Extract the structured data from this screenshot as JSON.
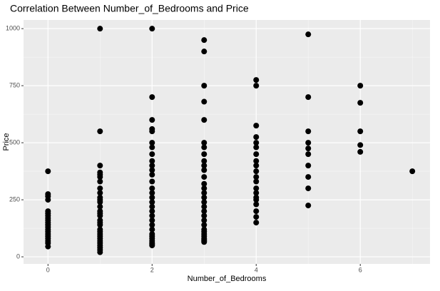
{
  "chart_data": {
    "type": "scatter",
    "title": "Correlation Between Number_of_Bedrooms and Price",
    "x_label": "Number_of_Bedrooms",
    "y_label": "Price",
    "color": "#000000",
    "grid": true,
    "xlim": [
      -0.47,
      7.34
    ],
    "ylim": [
      -31,
      1038
    ],
    "xticks": [
      0,
      2,
      4,
      6
    ],
    "yticks": [
      0,
      250,
      500,
      750,
      1000
    ],
    "xminor": [
      1,
      3,
      5,
      7
    ],
    "yminor": [
      125,
      375,
      625,
      875
    ],
    "x": [
      0,
      0,
      0,
      0,
      0,
      0,
      0,
      0,
      0,
      0,
      0,
      0,
      0,
      0,
      0,
      0,
      0,
      0,
      0,
      0,
      1,
      1,
      1,
      1,
      1,
      1,
      1,
      1,
      1,
      1,
      1,
      1,
      1,
      1,
      1,
      1,
      1,
      1,
      1,
      1,
      1,
      1,
      1,
      1,
      1,
      1,
      1,
      1,
      1,
      1,
      2,
      2,
      2,
      2,
      2,
      2,
      2,
      2,
      2,
      2,
      2,
      2,
      2,
      2,
      2,
      2,
      2,
      2,
      2,
      2,
      2,
      2,
      2,
      2,
      2,
      2,
      2,
      2,
      2,
      2,
      3,
      3,
      3,
      3,
      3,
      3,
      3,
      3,
      3,
      3,
      3,
      3,
      3,
      3,
      3,
      3,
      3,
      3,
      3,
      3,
      3,
      3,
      3,
      3,
      3,
      3,
      3,
      3,
      3,
      3,
      4,
      4,
      4,
      4,
      4,
      4,
      4,
      4,
      4,
      4,
      4,
      4,
      4,
      4,
      4,
      4,
      4,
      4,
      4,
      4,
      5,
      5,
      5,
      5,
      5,
      5,
      5,
      5,
      5,
      5,
      6,
      6,
      6,
      6,
      6,
      7
    ],
    "values": [
      375,
      275,
      265,
      250,
      200,
      190,
      180,
      170,
      160,
      150,
      140,
      130,
      120,
      110,
      100,
      90,
      80,
      70,
      60,
      45,
      1000,
      550,
      400,
      370,
      360,
      350,
      330,
      300,
      280,
      260,
      250,
      240,
      220,
      200,
      190,
      180,
      160,
      150,
      140,
      120,
      110,
      100,
      90,
      80,
      70,
      60,
      50,
      40,
      30,
      20,
      1000,
      700,
      600,
      560,
      550,
      500,
      480,
      450,
      420,
      400,
      380,
      360,
      330,
      300,
      280,
      260,
      240,
      220,
      200,
      180,
      160,
      140,
      120,
      100,
      90,
      80,
      70,
      60,
      55,
      50,
      950,
      900,
      750,
      680,
      600,
      500,
      480,
      450,
      420,
      400,
      380,
      350,
      320,
      300,
      280,
      260,
      240,
      220,
      200,
      180,
      160,
      140,
      120,
      110,
      100,
      90,
      80,
      75,
      70,
      65,
      775,
      750,
      575,
      525,
      500,
      480,
      450,
      420,
      400,
      375,
      350,
      330,
      300,
      280,
      260,
      250,
      230,
      200,
      175,
      150,
      975,
      700,
      550,
      500,
      475,
      450,
      400,
      350,
      300,
      225,
      750,
      675,
      550,
      490,
      460,
      375
    ]
  }
}
